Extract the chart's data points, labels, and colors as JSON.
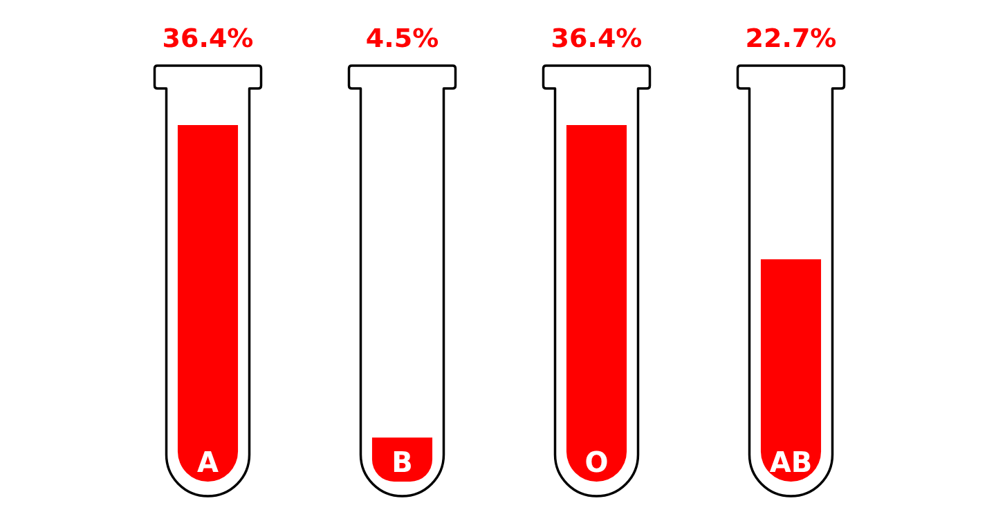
{
  "chart_data": {
    "type": "bar",
    "categories": [
      "A",
      "B",
      "O",
      "AB"
    ],
    "values": [
      36.4,
      4.5,
      36.4,
      22.7
    ],
    "value_labels": [
      "36.4%",
      "4.5%",
      "36.4%",
      "22.7%"
    ],
    "color": "#ff0000",
    "tick_labels": false
  }
}
